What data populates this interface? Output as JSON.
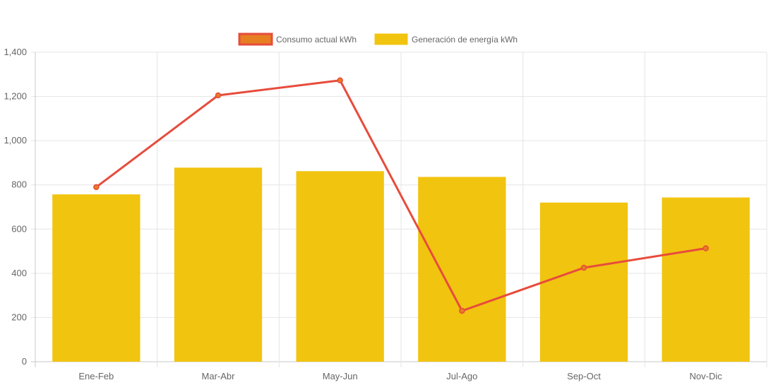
{
  "chart_data": {
    "type": "bar",
    "categories": [
      "Ene-Feb",
      "Mar-Abr",
      "May-Jun",
      "Jul-Ago",
      "Sep-Oct",
      "Nov-Dic"
    ],
    "series": [
      {
        "name": "Consumo actual kWh",
        "type": "line",
        "values": [
          790,
          1205,
          1273,
          230,
          425,
          513
        ],
        "color": "#e74c3c",
        "fill": "#e67e22"
      },
      {
        "name": "Generación de energía kWh",
        "type": "bar",
        "values": [
          757,
          878,
          862,
          836,
          720,
          743
        ],
        "color": "#f1c40f"
      }
    ],
    "ylim": [
      0,
      1400
    ],
    "yticks": [
      0,
      200,
      400,
      600,
      800,
      1000,
      1200,
      1400
    ],
    "ytick_labels": [
      "0",
      "200",
      "400",
      "600",
      "800",
      "1,000",
      "1,200",
      "1,400"
    ],
    "title": "",
    "xlabel": "",
    "ylabel": "",
    "grid": true,
    "legend_position": "top-center"
  }
}
